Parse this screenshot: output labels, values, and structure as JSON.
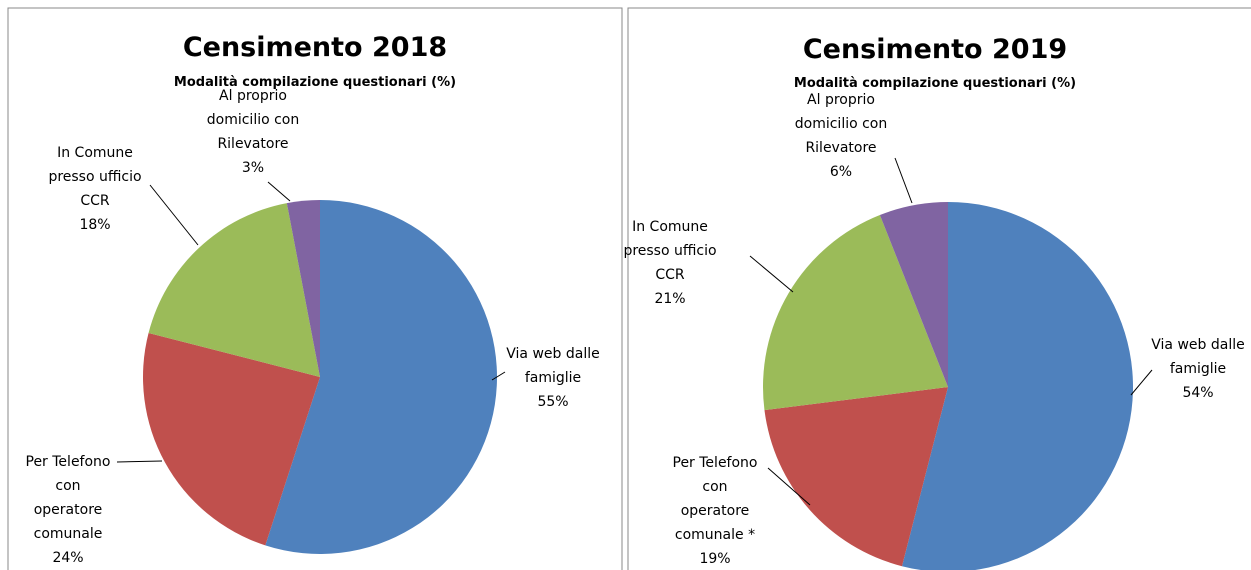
{
  "chart_data": [
    {
      "type": "pie",
      "title": "Censimento 2018",
      "subtitle": "Modalità compilazione questionari (%)",
      "categories": [
        "Via web dalle\nfamiglie",
        "Per Telefono\ncon\noperatore\ncomunale",
        "In Comune\npresso ufficio\nCCR",
        "Al proprio\ndomicilio con\nRilevatore"
      ],
      "values": [
        55,
        24,
        18,
        3
      ],
      "value_labels": [
        "55%",
        "24%",
        "18%",
        "3%"
      ],
      "colors": [
        "#4f81bd",
        "#c0504d",
        "#9bbb59",
        "#8064a2"
      ]
    },
    {
      "type": "pie",
      "title": "Censimento 2019",
      "subtitle": "Modalità compilazione questionari (%)",
      "categories": [
        "Via web dalle\nfamiglie",
        "Per Telefono\ncon\noperatore\ncomunale *",
        "In Comune\npresso ufficio\nCCR",
        "Al proprio\ndomicilio con\nRilevatore"
      ],
      "values": [
        54,
        19,
        21,
        6
      ],
      "value_labels": [
        "54%",
        "19%",
        "21%",
        "6%"
      ],
      "colors": [
        "#4f81bd",
        "#c0504d",
        "#9bbb59",
        "#8064a2"
      ]
    }
  ]
}
